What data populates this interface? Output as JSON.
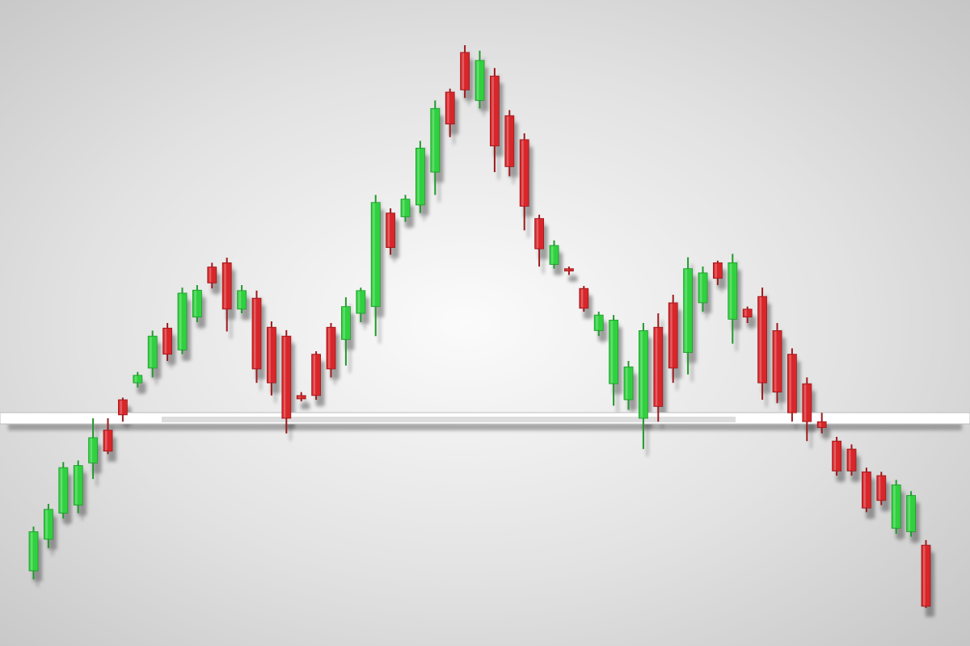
{
  "chart_data": {
    "type": "candlestick",
    "title": "",
    "xlabel": "",
    "ylabel": "",
    "pattern": "head-and-shoulders",
    "neckline": 0,
    "ylim": [
      -45,
      100
    ],
    "grid": false,
    "legend": "none",
    "colors": {
      "bullish": "#2fd13f",
      "bearish": "#d8262a",
      "neckline": "#ffffff",
      "background_center": "#fbfbfb",
      "background_edge": "#c9c9c9"
    },
    "candles": [
      {
        "o": -36.2,
        "c": -26.9,
        "h": -25.7,
        "l": -38.2
      },
      {
        "o": -28.7,
        "c": -21.6,
        "h": -20.3,
        "l": -30.8
      },
      {
        "o": -22.5,
        "c": -11.7,
        "h": -10.4,
        "l": -23.8
      },
      {
        "o": -20.6,
        "c": -11.2,
        "h": -10.0,
        "l": -22.5
      },
      {
        "o": -10.6,
        "c": -4.6,
        "h": 0.0,
        "l": -14.4
      },
      {
        "o": -2.8,
        "c": -7.8,
        "h": 0.0,
        "l": -8.5
      },
      {
        "o": 4.4,
        "c": 0.8,
        "h": 4.9,
        "l": -0.8
      },
      {
        "o": 8.4,
        "c": 10.2,
        "h": 11.0,
        "l": 7.3
      },
      {
        "o": 11.9,
        "c": 19.5,
        "h": 20.8,
        "l": 9.7
      },
      {
        "o": 21.4,
        "c": 15.2,
        "h": 22.6,
        "l": 13.6
      },
      {
        "o": 16.2,
        "c": 29.7,
        "h": 31.0,
        "l": 15.2
      },
      {
        "o": 24.0,
        "c": 30.4,
        "h": 31.6,
        "l": 22.8
      },
      {
        "o": 35.9,
        "c": 32.1,
        "h": 36.9,
        "l": 30.8
      },
      {
        "o": 36.9,
        "c": 25.9,
        "h": 38.1,
        "l": 20.6
      },
      {
        "o": 25.9,
        "c": 30.3,
        "h": 31.6,
        "l": 24.9
      },
      {
        "o": 28.5,
        "c": 11.7,
        "h": 30.3,
        "l": 8.4
      },
      {
        "o": 21.6,
        "c": 8.4,
        "h": 23.0,
        "l": 5.4
      },
      {
        "o": 19.5,
        "c": 0.0,
        "h": 20.9,
        "l": -3.6
      },
      {
        "o": 5.4,
        "c": 4.6,
        "h": 6.2,
        "l": 4.0
      },
      {
        "o": 15.2,
        "c": 5.4,
        "h": 15.9,
        "l": 4.4
      },
      {
        "o": 21.6,
        "c": 11.7,
        "h": 22.6,
        "l": 9.7
      },
      {
        "o": 18.7,
        "c": 26.5,
        "h": 28.7,
        "l": 12.5
      },
      {
        "o": 24.9,
        "c": 30.3,
        "h": 31.0,
        "l": 22.8
      },
      {
        "o": 26.5,
        "c": 51.2,
        "h": 53.0,
        "l": 19.5
      },
      {
        "o": 48.7,
        "c": 40.5,
        "h": 49.8,
        "l": 38.8
      },
      {
        "o": 47.8,
        "c": 52.0,
        "h": 53.0,
        "l": 46.6
      },
      {
        "o": 50.6,
        "c": 64.1,
        "h": 65.8,
        "l": 48.7
      },
      {
        "o": 58.4,
        "c": 73.5,
        "h": 75.4,
        "l": 53.0
      },
      {
        "o": 77.4,
        "c": 69.8,
        "h": 78.2,
        "l": 66.7
      },
      {
        "o": 86.8,
        "c": 77.9,
        "h": 88.5,
        "l": 76.0
      },
      {
        "o": 75.4,
        "c": 84.9,
        "h": 87.2,
        "l": 73.5
      },
      {
        "o": 81.2,
        "c": 64.6,
        "h": 83.1,
        "l": 58.4
      },
      {
        "o": 71.8,
        "c": 59.7,
        "h": 73.1,
        "l": 57.4
      },
      {
        "o": 66.1,
        "c": 50.3,
        "h": 67.6,
        "l": 44.6
      },
      {
        "o": 47.4,
        "c": 40.2,
        "h": 48.3,
        "l": 36.0
      },
      {
        "o": 36.5,
        "c": 41.0,
        "h": 42.2,
        "l": 35.5
      },
      {
        "o": 35.5,
        "c": 35.2,
        "h": 36.0,
        "l": 34.0
      },
      {
        "o": 30.8,
        "c": 26.1,
        "h": 31.4,
        "l": 25.3
      },
      {
        "o": 20.8,
        "c": 24.5,
        "h": 25.3,
        "l": 19.5
      },
      {
        "o": 8.2,
        "c": 23.3,
        "h": 24.5,
        "l": 3.0
      },
      {
        "o": 4.4,
        "c": 12.2,
        "h": 13.6,
        "l": 2.0
      },
      {
        "o": 0.0,
        "c": 20.8,
        "h": 22.6,
        "l": -7.3
      },
      {
        "o": 21.6,
        "c": 2.8,
        "h": 24.9,
        "l": -0.8
      },
      {
        "o": 27.4,
        "c": 11.9,
        "h": 29.3,
        "l": 8.4
      },
      {
        "o": 15.6,
        "c": 35.5,
        "h": 38.2,
        "l": 10.4
      },
      {
        "o": 27.4,
        "c": 34.5,
        "h": 36.0,
        "l": 25.3
      },
      {
        "o": 36.9,
        "c": 33.2,
        "h": 37.4,
        "l": 31.6
      },
      {
        "o": 23.5,
        "c": 36.9,
        "h": 39.0,
        "l": 17.7
      },
      {
        "o": 25.9,
        "c": 24.0,
        "h": 26.5,
        "l": 22.6
      },
      {
        "o": 28.9,
        "c": 8.4,
        "h": 31.0,
        "l": 4.4
      },
      {
        "o": 20.8,
        "c": 6.2,
        "h": 22.6,
        "l": 3.6
      },
      {
        "o": 15.2,
        "c": 1.3,
        "h": 16.6,
        "l": -0.8
      },
      {
        "o": 8.2,
        "c": -0.8,
        "h": 9.7,
        "l": -5.4
      },
      {
        "o": -0.8,
        "c": -2.2,
        "h": 1.3,
        "l": -3.6
      },
      {
        "o": -5.4,
        "c": -12.5,
        "h": -4.4,
        "l": -13.6
      },
      {
        "o": -7.3,
        "c": -12.5,
        "h": -6.2,
        "l": -13.6
      },
      {
        "o": -12.7,
        "c": -21.3,
        "h": -11.7,
        "l": -22.3
      },
      {
        "o": -13.6,
        "c": -19.5,
        "h": -12.7,
        "l": -20.6
      },
      {
        "o": -26.1,
        "c": -15.8,
        "h": -14.6,
        "l": -27.4
      },
      {
        "o": -26.9,
        "c": -18.3,
        "h": -17.3,
        "l": -28.1
      },
      {
        "o": -30.1,
        "c": -44.6,
        "h": -28.9,
        "l": -45.0
      }
    ]
  }
}
